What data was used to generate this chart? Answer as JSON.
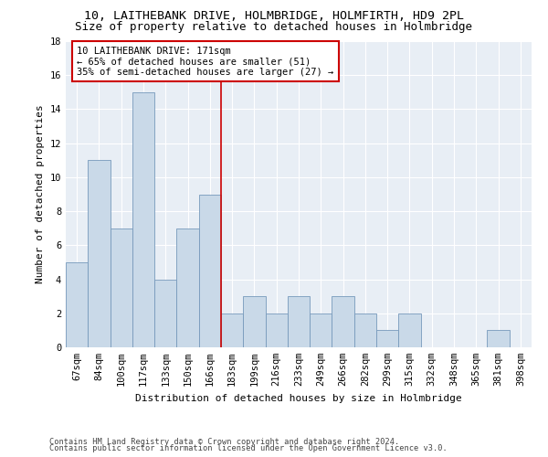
{
  "title1": "10, LAITHEBANK DRIVE, HOLMBRIDGE, HOLMFIRTH, HD9 2PL",
  "title2": "Size of property relative to detached houses in Holmbridge",
  "xlabel": "Distribution of detached houses by size in Holmbridge",
  "ylabel": "Number of detached properties",
  "categories": [
    "67sqm",
    "84sqm",
    "100sqm",
    "117sqm",
    "133sqm",
    "150sqm",
    "166sqm",
    "183sqm",
    "199sqm",
    "216sqm",
    "233sqm",
    "249sqm",
    "266sqm",
    "282sqm",
    "299sqm",
    "315sqm",
    "332sqm",
    "348sqm",
    "365sqm",
    "381sqm",
    "398sqm"
  ],
  "values": [
    5,
    11,
    7,
    15,
    4,
    7,
    9,
    2,
    3,
    2,
    3,
    2,
    3,
    2,
    1,
    2,
    0,
    0,
    0,
    1,
    0
  ],
  "bar_color": "#c9d9e8",
  "bar_edge_color": "#7799bb",
  "ylim": [
    0,
    18
  ],
  "yticks": [
    0,
    2,
    4,
    6,
    8,
    10,
    12,
    14,
    16,
    18
  ],
  "vline_index": 6.5,
  "vline_color": "#cc0000",
  "annotation_text": "10 LAITHEBANK DRIVE: 171sqm\n← 65% of detached houses are smaller (51)\n35% of semi-detached houses are larger (27) →",
  "annotation_box_color": "#ffffff",
  "annotation_box_edge": "#cc0000",
  "footer1": "Contains HM Land Registry data © Crown copyright and database right 2024.",
  "footer2": "Contains public sector information licensed under the Open Government Licence v3.0.",
  "bg_color": "#e8eef5",
  "title1_fontsize": 9.5,
  "title2_fontsize": 9,
  "axis_fontsize": 8,
  "tick_fontsize": 7.5,
  "annot_fontsize": 7.5,
  "footer_fontsize": 6.2
}
